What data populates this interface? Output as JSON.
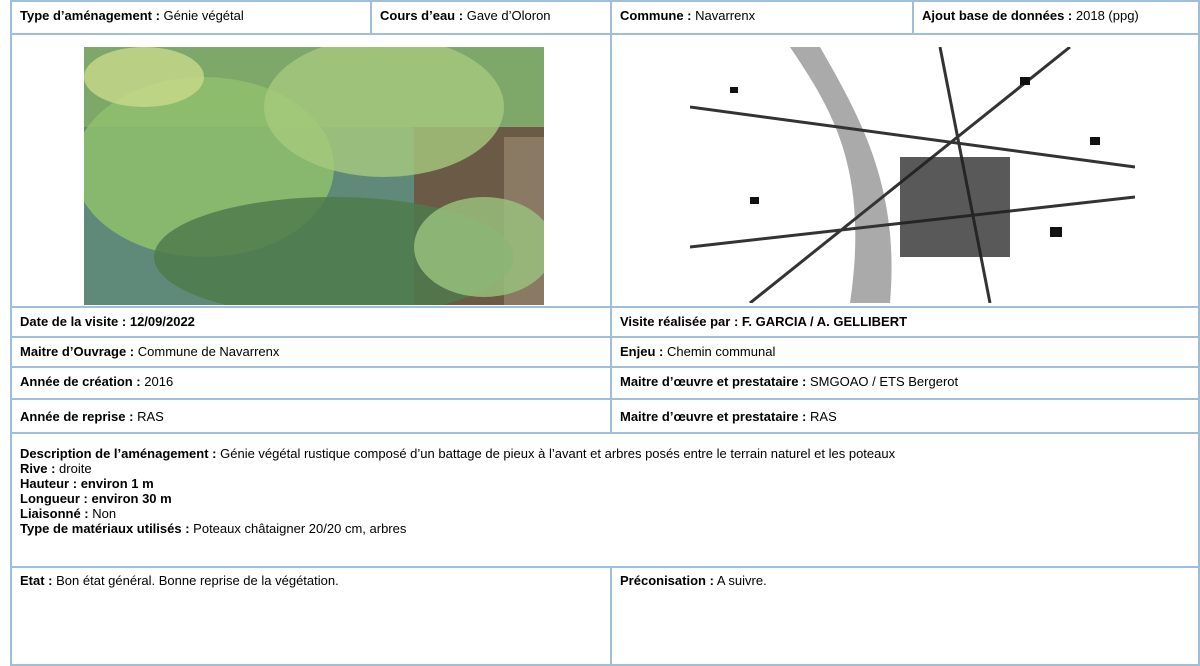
{
  "header": {
    "type": {
      "label": "Type d’aménagement :",
      "value": "Génie végétal"
    },
    "cours_eau": {
      "label": "Cours d’eau :",
      "value": "Gave d’Oloron"
    },
    "commune": {
      "label": "Commune :",
      "value": "Navarrenx"
    },
    "ajout": {
      "label": "Ajout base de données :",
      "value": "2018 (ppg)"
    }
  },
  "visit": {
    "date": {
      "label": "Date de la visite :",
      "value": "12/09/2022"
    },
    "par": {
      "label": "Visite réalisée par :",
      "value": "F. GARCIA / A. GELLIBERT"
    },
    "maitre_ouvrage": {
      "label": "Maitre d’Ouvrage :",
      "value": "Commune de Navarrenx"
    },
    "enjeu": {
      "label": "Enjeu :",
      "value": "Chemin communal"
    },
    "annee_creation": {
      "label": "Année de création :",
      "value": "2016"
    },
    "moe_creation": {
      "label": "Maitre d’œuvre et prestataire :",
      "value": "SMGOAO / ETS Bergerot"
    },
    "annee_reprise": {
      "label": "Année de reprise :",
      "value": "RAS"
    },
    "moe_reprise": {
      "label": "Maitre d’œuvre et prestataire :",
      "value": "RAS"
    }
  },
  "description": {
    "amenagement": {
      "label": "Description de l’aménagement :",
      "value": "Génie végétal rustique composé d’un battage de pieux à l’avant et arbres posés entre le terrain naturel et les poteaux"
    },
    "rive": {
      "label": "Rive :",
      "value": "droite"
    },
    "hauteur": {
      "label": "Hauteur :",
      "value": "environ 1 m"
    },
    "longueur": {
      "label": "Longueur :",
      "value": "environ 30 m"
    },
    "liaisonne": {
      "label": "Liaisonné :",
      "value": "Non"
    },
    "materiaux": {
      "label": "Type de matériaux utilisés :",
      "value": "Poteaux châtaigner 20/20 cm, arbres"
    }
  },
  "footer": {
    "etat": {
      "label": "Etat :",
      "value": "Bon état général. Bonne reprise de la végétation."
    },
    "preconisation": {
      "label": "Préconisation :",
      "value": "A suivre."
    }
  }
}
